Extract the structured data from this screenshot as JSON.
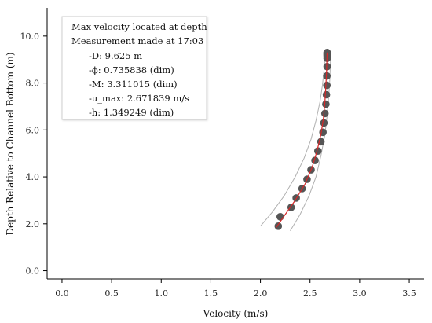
{
  "chart_data": {
    "type": "scatter",
    "xlabel": "Velocity (m/s)",
    "ylabel": "Depth Relative to Channel Bottom (m)",
    "xlim": [
      -0.15,
      3.65
    ],
    "ylim": [
      -0.35,
      11.2
    ],
    "xticks": [
      "0.0",
      "0.5",
      "1.0",
      "1.5",
      "2.0",
      "2.5",
      "3.0",
      "3.5"
    ],
    "yticks": [
      "0.0",
      "2.0",
      "4.0",
      "6.0",
      "8.0",
      "10.0"
    ],
    "grid": false,
    "colors": {
      "points": "#555555",
      "fit": "#d62728",
      "bounds": "#b0b0b0",
      "axis": "#000000"
    },
    "series": [
      {
        "type": "scatter",
        "x": [
          2.18,
          2.2,
          2.31,
          2.36,
          2.42,
          2.47,
          2.51,
          2.55,
          2.58,
          2.61,
          2.63,
          2.64,
          2.65,
          2.66,
          2.665,
          2.67,
          2.67,
          2.672,
          2.672,
          2.672,
          2.672,
          2.672,
          2.672
        ],
        "y": [
          1.9,
          2.3,
          2.7,
          3.1,
          3.5,
          3.9,
          4.3,
          4.7,
          5.1,
          5.5,
          5.9,
          6.3,
          6.7,
          7.1,
          7.5,
          7.9,
          8.3,
          8.7,
          9.05,
          9.15,
          9.2,
          9.25,
          9.3
        ]
      },
      {
        "type": "line",
        "x": [
          2.16,
          2.25,
          2.35,
          2.45,
          2.52,
          2.57,
          2.61,
          2.635,
          2.65,
          2.66,
          2.667,
          2.67,
          2.672
        ],
        "y": [
          1.85,
          2.4,
          3.0,
          3.7,
          4.4,
          5.1,
          5.8,
          6.5,
          7.2,
          7.9,
          8.5,
          9.0,
          9.3
        ]
      },
      {
        "type": "line",
        "x": [
          2.0,
          2.12,
          2.24,
          2.35,
          2.44,
          2.51,
          2.56,
          2.6,
          2.625,
          2.64,
          2.65,
          2.655
        ],
        "y": [
          1.9,
          2.5,
          3.2,
          4.0,
          4.8,
          5.6,
          6.4,
          7.2,
          7.9,
          8.5,
          9.0,
          9.3
        ]
      },
      {
        "type": "line",
        "x": [
          2.3,
          2.4,
          2.49,
          2.56,
          2.61,
          2.65,
          2.675,
          2.69,
          2.7,
          2.705,
          2.708
        ],
        "y": [
          1.7,
          2.4,
          3.2,
          4.0,
          4.9,
          5.8,
          6.7,
          7.5,
          8.2,
          8.8,
          9.3
        ]
      }
    ],
    "legend": {
      "placement": "top-left",
      "lines": [
        "Max velocity located at depth",
        "Measurement made at 17:03",
        "-D: 9.625 m",
        "-ϕ: 0.735838 (dim)",
        "-M: 3.311015 (dim)",
        "-u_max: 2.671839 m/s",
        "-h: 1.349249 (dim)"
      ]
    }
  }
}
